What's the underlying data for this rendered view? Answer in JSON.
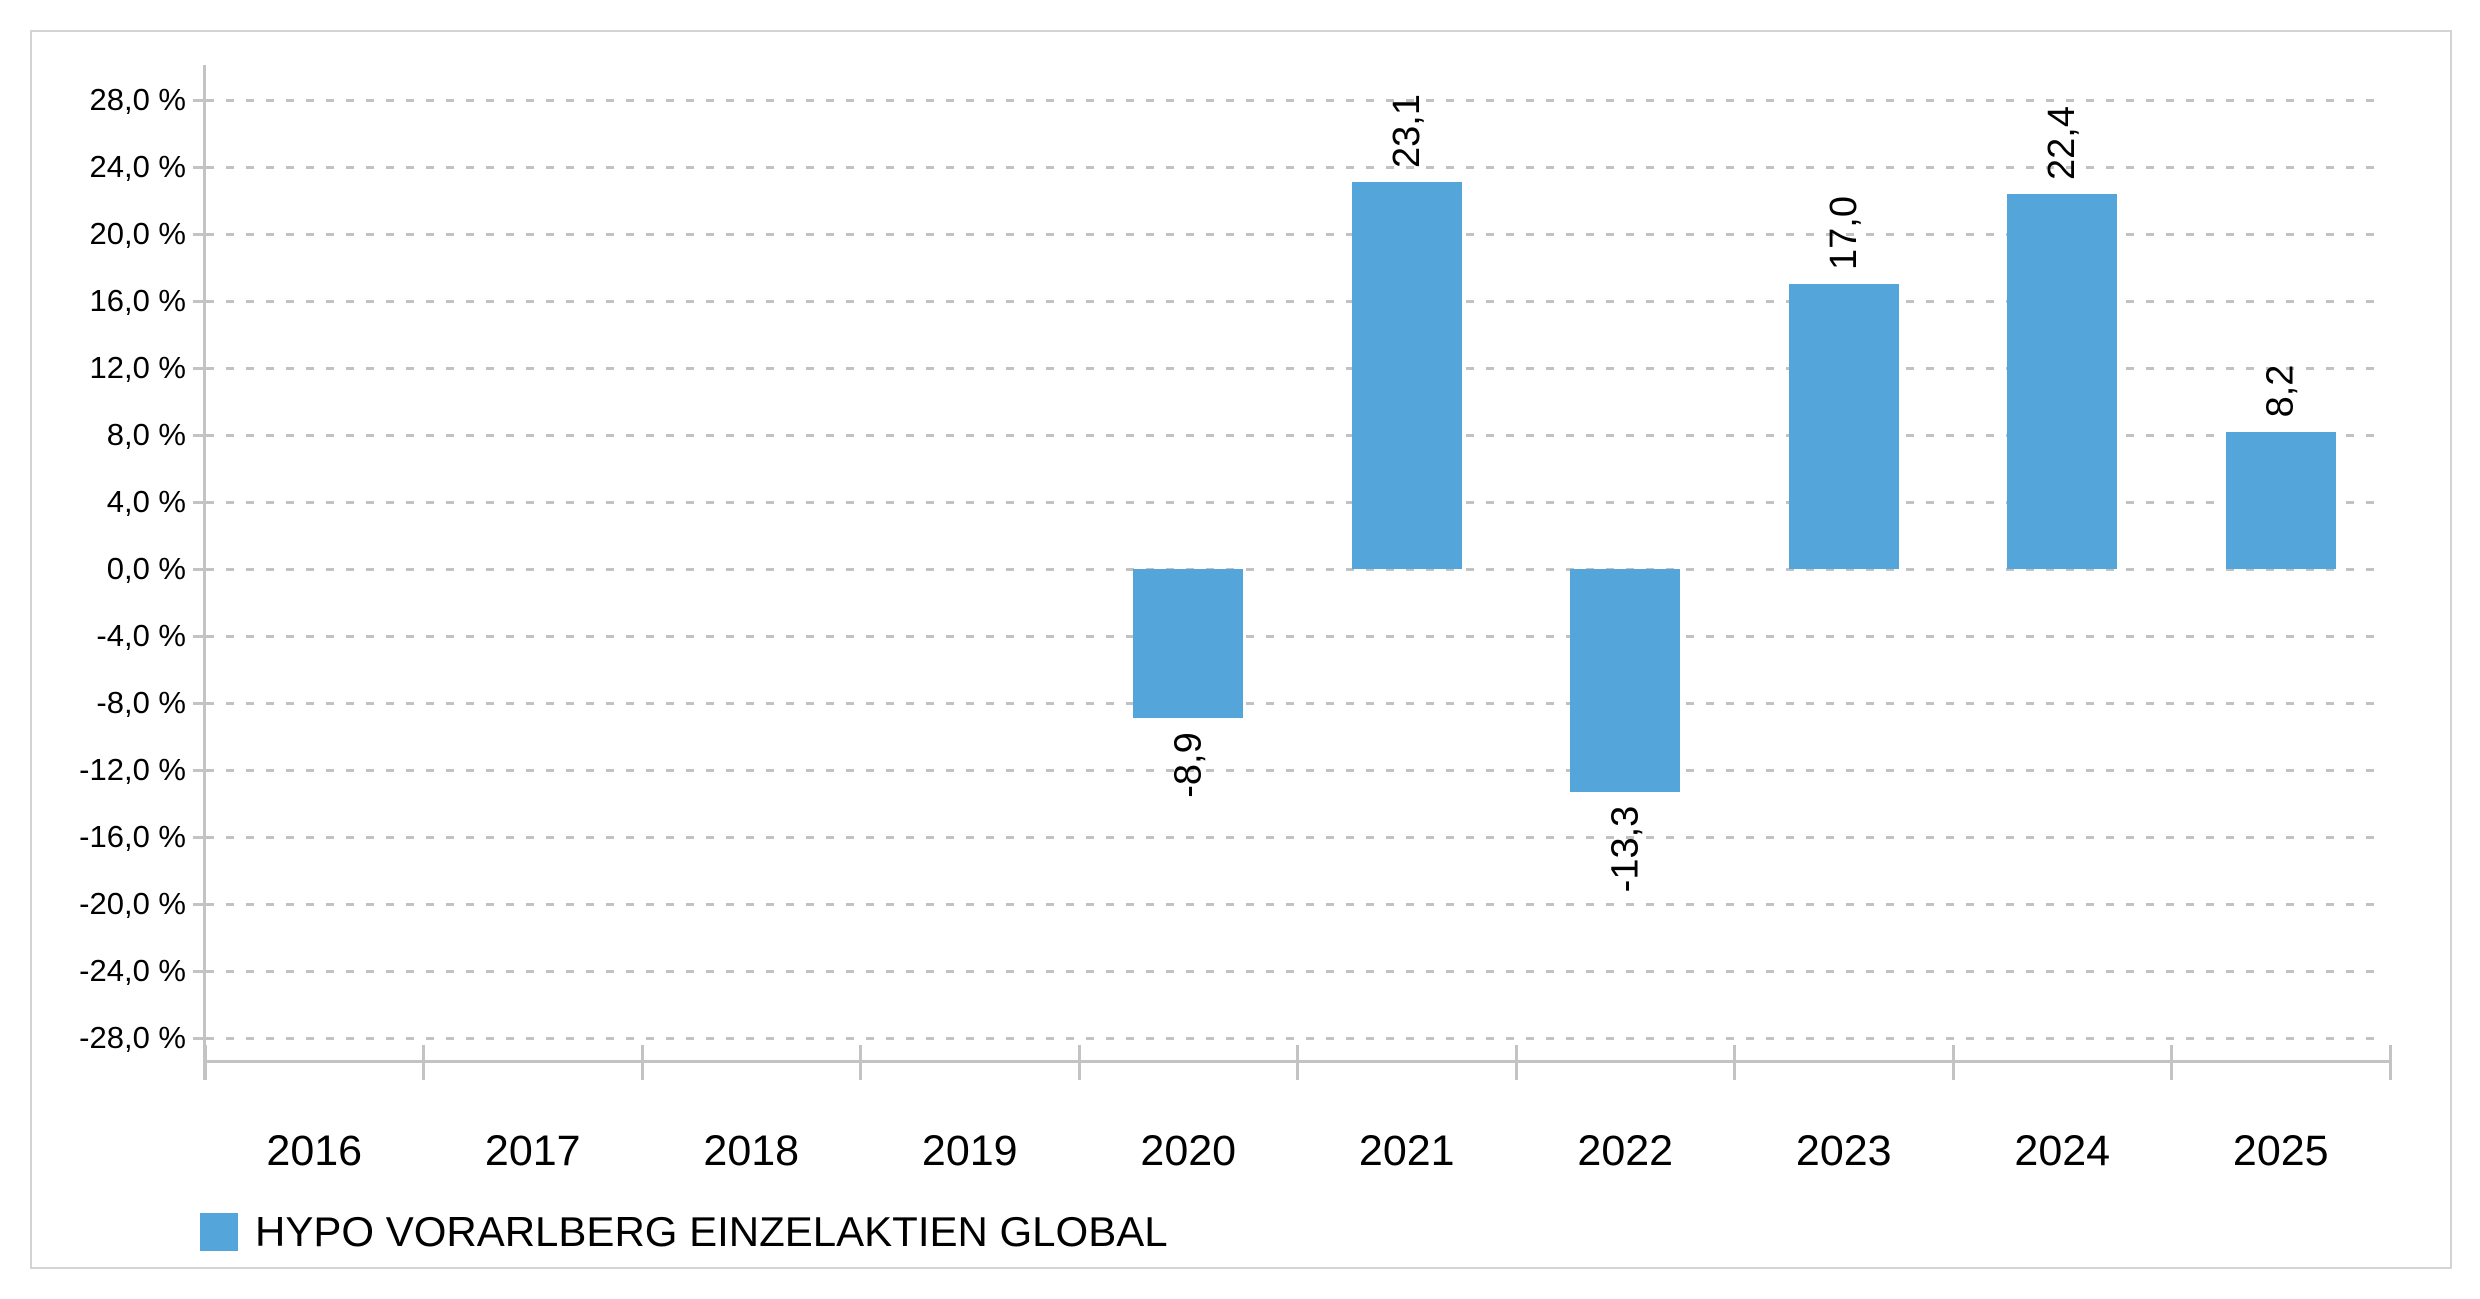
{
  "chart_data": {
    "type": "bar",
    "title": "",
    "xlabel": "",
    "ylabel": "",
    "categories": [
      "2016",
      "2017",
      "2018",
      "2019",
      "2020",
      "2021",
      "2022",
      "2023",
      "2024",
      "2025"
    ],
    "series": [
      {
        "name": "HYPO VORARLBERG EINZELAKTIEN GLOBAL",
        "values": [
          null,
          null,
          null,
          null,
          -8.9,
          23.1,
          -13.3,
          17.0,
          22.4,
          8.2
        ],
        "value_labels": [
          "",
          "",
          "",
          "",
          "-8,9",
          "23,1",
          "-13,3",
          "17,0",
          "22,4",
          "8,2"
        ],
        "color": "#54a5da"
      }
    ],
    "ylim": [
      -28,
      28
    ],
    "y_tick_step": 4,
    "y_tick_values": [
      28,
      24,
      20,
      16,
      12,
      8,
      4,
      0,
      -4,
      -8,
      -12,
      -16,
      -20,
      -24,
      -28
    ],
    "y_tick_labels": [
      "28,0 %",
      "24,0 %",
      "20,0 %",
      "16,0 %",
      "12,0 %",
      "8,0 %",
      "4,0 %",
      "0,0 %",
      "-4,0 %",
      "-8,0 %",
      "-12,0 %",
      "-16,0 %",
      "-20,0 %",
      "-24,0 %",
      "-28,0 %"
    ],
    "grid": "horizontal-dashed",
    "bar_label_rotation": -90,
    "decimal_separator": ",",
    "legend_position": "bottom-left"
  },
  "legend": {
    "label": "HYPO VORARLBERG EINZELAKTIEN GLOBAL",
    "swatch_color": "#54a5da"
  },
  "colors": {
    "bar": "#54a5da",
    "gridline": "#c2c2c2",
    "axis": "#c3c3c3",
    "frame_border": "#d4d4d4",
    "text": "#000000"
  }
}
